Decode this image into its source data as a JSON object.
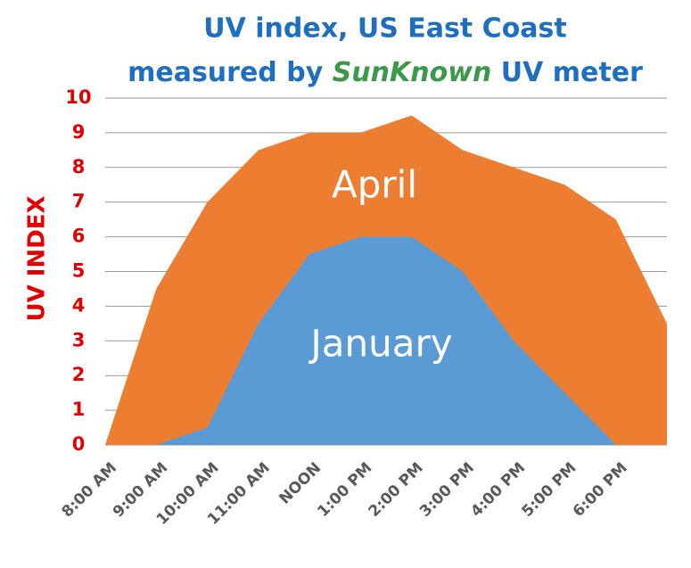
{
  "chart_data": {
    "type": "area",
    "title": {
      "line1": "UV index, US East Coast",
      "line2_start": "measured by",
      "brand": "SunKnown",
      "line2_end": "UV meter"
    },
    "y_label": "UV INDEX",
    "categories": [
      "8:00 AM",
      "9:00 AM",
      "10:00 AM",
      "11:00 AM",
      "NOON",
      "1:00 PM",
      "2:00 PM",
      "3:00 PM",
      "4:00 PM",
      "5:00 PM",
      "6:00 PM",
      null
    ],
    "series": [
      {
        "name": "April",
        "color": "#ed7d31",
        "values": [
          0,
          4.5,
          7,
          8.5,
          9,
          9,
          9.5,
          8.5,
          8,
          7.5,
          6.5,
          3.5
        ]
      },
      {
        "name": "January",
        "color": "#5b9bd5",
        "values": [
          0,
          0,
          0.5,
          3.5,
          5.5,
          6,
          6,
          5,
          3,
          1.5,
          0,
          0
        ]
      }
    ],
    "ylim": [
      0,
      10
    ],
    "yticks": [
      0,
      1,
      2,
      3,
      4,
      5,
      6,
      7,
      8,
      9,
      10
    ],
    "grid": true
  }
}
